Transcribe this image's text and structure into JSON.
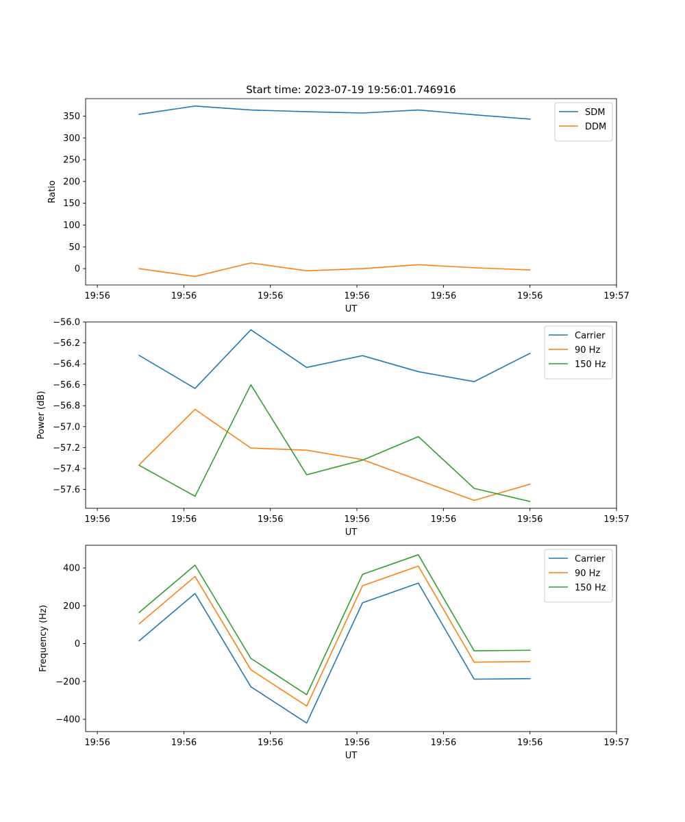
{
  "chart_data": [
    {
      "type": "line",
      "title": "Start time: 2023-07-19 19:56:01.746916",
      "xlabel": "UT",
      "ylabel": "Ratio",
      "x": [
        0,
        1,
        2,
        3,
        4,
        5,
        6,
        7
      ],
      "x_tick_positions": [
        -0.75,
        0.8,
        2.35,
        3.9,
        5.45,
        7.0,
        8.55
      ],
      "x_tick_labels": [
        "19:56",
        "19:56",
        "19:56",
        "19:56",
        "19:56",
        "19:56",
        "19:57"
      ],
      "xlim": [
        -0.96,
        8.55
      ],
      "ylim": [
        -37.5,
        390
      ],
      "y_ticks": [
        0,
        50,
        100,
        150,
        200,
        250,
        300,
        350
      ],
      "y_tick_labels": [
        "0",
        "50",
        "100",
        "150",
        "200",
        "250",
        "300",
        "350"
      ],
      "legend": "top-right",
      "series": [
        {
          "name": "SDM",
          "color": "#1f77b4",
          "values": [
            354,
            373,
            364,
            360,
            357,
            364,
            353,
            343
          ]
        },
        {
          "name": "DDM",
          "color": "#ff7f0e",
          "values": [
            0,
            -18,
            13,
            -5,
            0,
            9,
            2,
            -3
          ]
        }
      ]
    },
    {
      "type": "line",
      "title": "",
      "xlabel": "UT",
      "ylabel": "Power (dB)",
      "x": [
        0,
        1,
        2,
        3,
        4,
        5,
        6,
        7
      ],
      "x_tick_positions": [
        -0.75,
        0.8,
        2.35,
        3.9,
        5.45,
        7.0,
        8.55
      ],
      "x_tick_labels": [
        "19:56",
        "19:56",
        "19:56",
        "19:56",
        "19:56",
        "19:56",
        "19:57"
      ],
      "xlim": [
        -0.96,
        8.55
      ],
      "ylim": [
        -57.78,
        -56.0
      ],
      "y_ticks": [
        -57.6,
        -57.4,
        -57.2,
        -57.0,
        -56.8,
        -56.6,
        -56.4,
        -56.2,
        -56.0
      ],
      "y_tick_labels": [
        "−57.6",
        "−57.4",
        "−57.2",
        "−57.0",
        "−56.8",
        "−56.6",
        "−56.4",
        "−56.2",
        "−56.0"
      ],
      "legend": "top-right",
      "series": [
        {
          "name": "Carrier",
          "color": "#1f77b4",
          "values": [
            -56.32,
            -56.635,
            -56.075,
            -56.435,
            -56.322,
            -56.475,
            -56.57,
            -56.3
          ]
        },
        {
          "name": "90 Hz",
          "color": "#ff7f0e",
          "values": [
            -57.365,
            -56.835,
            -57.205,
            -57.225,
            -57.315,
            -57.51,
            -57.705,
            -57.55
          ]
        },
        {
          "name": "150 Hz",
          "color": "#2ca02c",
          "values": [
            -57.37,
            -57.665,
            -56.6,
            -57.46,
            -57.32,
            -57.095,
            -57.59,
            -57.715
          ]
        }
      ]
    },
    {
      "type": "line",
      "title": "",
      "xlabel": "UT",
      "ylabel": "Frequency (Hz)",
      "x": [
        0,
        1,
        2,
        3,
        4,
        5,
        6,
        7
      ],
      "x_tick_positions": [
        -0.75,
        0.8,
        2.35,
        3.9,
        5.45,
        7.0,
        8.55
      ],
      "x_tick_labels": [
        "19:56",
        "19:56",
        "19:56",
        "19:56",
        "19:56",
        "19:56",
        "19:57"
      ],
      "xlim": [
        -0.96,
        8.55
      ],
      "ylim": [
        -465,
        520
      ],
      "y_ticks": [
        -400,
        -200,
        0,
        200,
        400
      ],
      "y_tick_labels": [
        "−400",
        "−200",
        "0",
        "200",
        "400"
      ],
      "legend": "top-right",
      "series": [
        {
          "name": "Carrier",
          "color": "#1f77b4",
          "values": [
            15,
            265,
            -228,
            -420,
            216,
            320,
            -188,
            -185
          ]
        },
        {
          "name": "90 Hz",
          "color": "#ff7f0e",
          "values": [
            105,
            355,
            -138,
            -330,
            306,
            410,
            -98,
            -95
          ]
        },
        {
          "name": "150 Hz",
          "color": "#2ca02c",
          "values": [
            165,
            415,
            -78,
            -270,
            366,
            470,
            -38,
            -35
          ]
        }
      ]
    }
  ]
}
